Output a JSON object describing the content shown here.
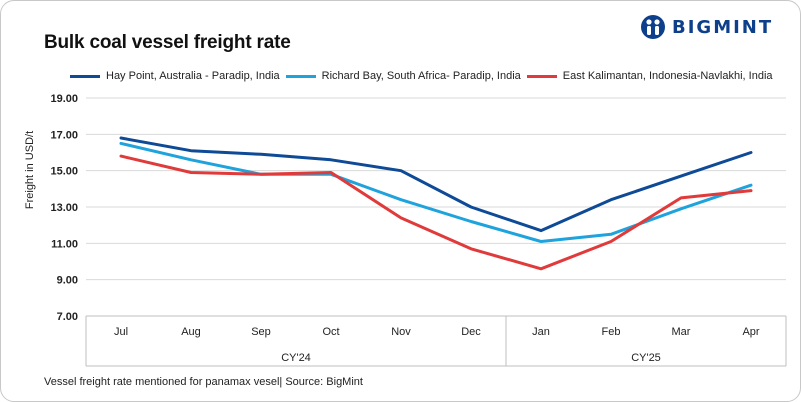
{
  "header": {
    "title": "Bulk coal vessel freight rate",
    "logo_text": "BIGMINT"
  },
  "footer": {
    "note": "Vessel freight rate mentioned for panamax vesel| Source: BigMint"
  },
  "colors": {
    "series1": "#0e4a96",
    "series2": "#1fa3dc",
    "series3": "#e03a3a",
    "grid": "#d9d9d9",
    "logo": "#0d3f8a"
  },
  "chart_data": {
    "type": "line",
    "title": "Bulk coal vessel freight rate",
    "ylabel": "Freight in USD/t",
    "xlabel": "",
    "ylim": [
      7,
      19
    ],
    "yticks": [
      "7.00",
      "9.00",
      "11.00",
      "13.00",
      "15.00",
      "17.00",
      "19.00"
    ],
    "grid": "horizontal",
    "legend": "top",
    "categories": [
      "Jul",
      "Aug",
      "Sep",
      "Oct",
      "Nov",
      "Dec",
      "Jan",
      "Feb",
      "Mar",
      "Apr"
    ],
    "groups": [
      {
        "label": "CY'24",
        "count": 6
      },
      {
        "label": "CY'25",
        "count": 4
      }
    ],
    "series": [
      {
        "name": "Hay Point, Australia - Paradip, India",
        "values": [
          16.8,
          16.1,
          15.9,
          15.6,
          15.0,
          13.0,
          11.7,
          13.4,
          14.7,
          16.0
        ]
      },
      {
        "name": "Richard Bay, South Africa- Paradip, India",
        "values": [
          16.5,
          15.6,
          14.8,
          14.8,
          13.4,
          12.2,
          11.1,
          11.5,
          12.9,
          14.2
        ]
      },
      {
        "name": "East Kalimantan, Indonesia-Navlakhi, India",
        "values": [
          15.8,
          14.9,
          14.8,
          14.9,
          12.4,
          10.7,
          9.6,
          11.1,
          13.5,
          13.9
        ]
      }
    ]
  }
}
